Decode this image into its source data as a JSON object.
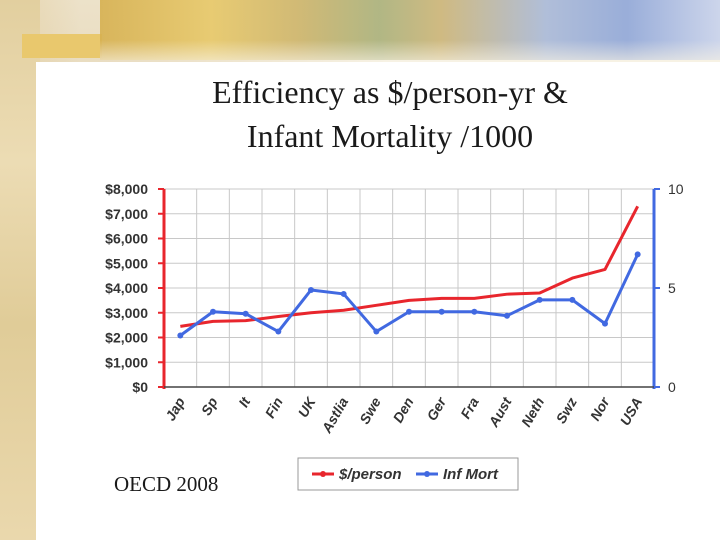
{
  "slide": {
    "title_line1": "Efficiency as $/person-yr &",
    "title_line2": "Infant Mortality /1000",
    "source": "OECD 2008"
  },
  "colors": {
    "spend": "#e8262d",
    "mortality": "#4169e1",
    "axis": "#444444",
    "grid": "#c8c8c8"
  },
  "chart_data": {
    "type": "line",
    "categories": [
      "Jap",
      "Sp",
      "It",
      "Fin",
      "UK",
      "Astlia",
      "Swe",
      "Den",
      "Ger",
      "Fra",
      "Aust",
      "Neth",
      "Swz",
      "Nor",
      "USA"
    ],
    "y_left": {
      "ticks": [
        0,
        1000,
        2000,
        3000,
        4000,
        5000,
        6000,
        7000,
        8000
      ],
      "tick_labels": [
        "$0",
        "$1,000",
        "$2,000",
        "$3,000",
        "$4,000",
        "$5,000",
        "$6,000",
        "$7,000",
        "$8,000"
      ],
      "range": [
        0,
        8000
      ]
    },
    "y_right": {
      "ticks": [
        0,
        5,
        10
      ],
      "tick_labels": [
        "0",
        "5",
        "10"
      ],
      "range": [
        0,
        10
      ]
    },
    "series": [
      {
        "name": "$/person",
        "axis": "left",
        "values": [
          2450,
          2650,
          2680,
          2850,
          3000,
          3100,
          3300,
          3500,
          3580,
          3580,
          3750,
          3800,
          4400,
          4750,
          7300
        ]
      },
      {
        "name": "Inf Mort",
        "axis": "right",
        "values": [
          2.6,
          3.8,
          3.7,
          2.8,
          4.9,
          4.7,
          2.8,
          3.8,
          3.8,
          3.8,
          3.6,
          4.4,
          4.4,
          3.2,
          6.7
        ]
      }
    ],
    "grid": true,
    "legend_position": "bottom"
  }
}
